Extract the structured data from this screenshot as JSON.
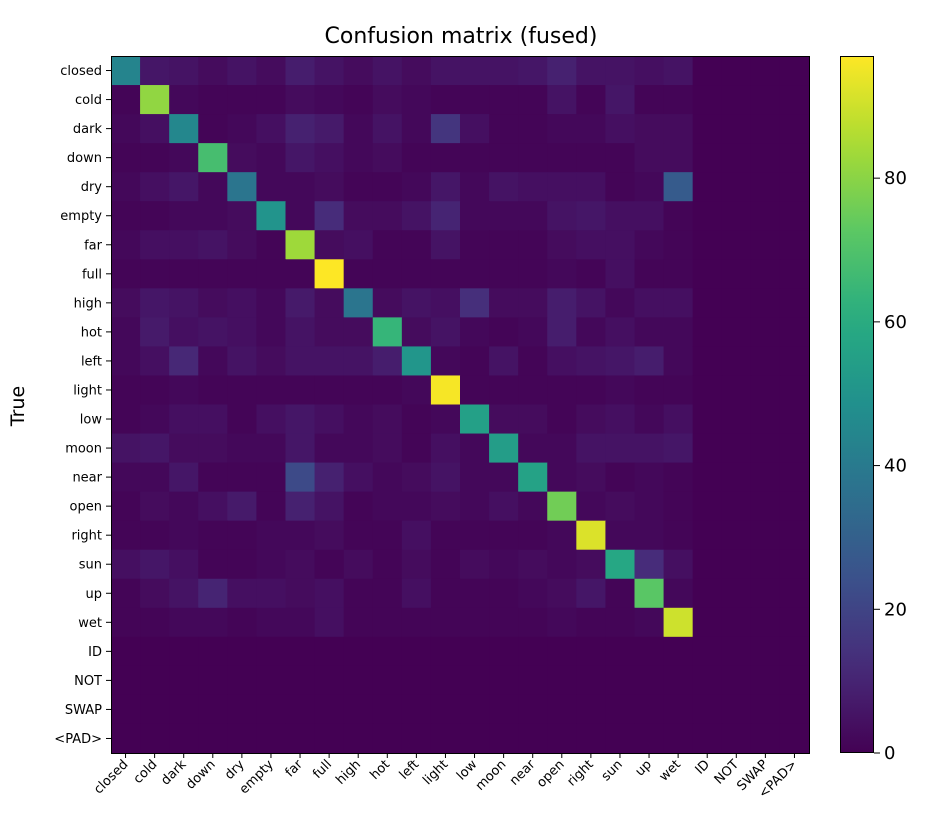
{
  "chart_data": {
    "type": "heatmap",
    "title": "Confusion matrix (fused)",
    "ylabel": "True",
    "xlabel": "",
    "labels": [
      "closed",
      "cold",
      "dark",
      "down",
      "dry",
      "empty",
      "far",
      "full",
      "high",
      "hot",
      "left",
      "light",
      "low",
      "moon",
      "near",
      "open",
      "right",
      "sun",
      "up",
      "wet",
      "ID",
      "NOT",
      "SWAP",
      "<PAD>"
    ],
    "colormap": "viridis",
    "vmin": 0,
    "vmax": 97,
    "colorbar_ticks": [
      0,
      20,
      40,
      60,
      80
    ],
    "matrix": [
      [
        44,
        6,
        5,
        3,
        5,
        3,
        8,
        5,
        3,
        5,
        3,
        5,
        5,
        5,
        6,
        9,
        5,
        5,
        4,
        5,
        0,
        0,
        0,
        0
      ],
      [
        1,
        81,
        2,
        1,
        1,
        1,
        3,
        2,
        1,
        3,
        2,
        1,
        1,
        1,
        1,
        5,
        1,
        6,
        1,
        1,
        0,
        0,
        0,
        0
      ],
      [
        2,
        4,
        45,
        1,
        2,
        4,
        9,
        7,
        2,
        5,
        2,
        15,
        4,
        1,
        1,
        2,
        2,
        4,
        3,
        3,
        0,
        0,
        0,
        0
      ],
      [
        1,
        1,
        2,
        68,
        3,
        2,
        6,
        4,
        2,
        3,
        1,
        1,
        1,
        1,
        1,
        1,
        1,
        1,
        3,
        3,
        0,
        0,
        0,
        0
      ],
      [
        2,
        4,
        6,
        2,
        38,
        2,
        2,
        3,
        1,
        1,
        2,
        6,
        2,
        5,
        4,
        4,
        4,
        1,
        2,
        28,
        0,
        0,
        0,
        0
      ],
      [
        1,
        1,
        2,
        2,
        3,
        50,
        2,
        12,
        3,
        3,
        5,
        10,
        2,
        2,
        2,
        5,
        6,
        4,
        4,
        1,
        0,
        0,
        0,
        0
      ],
      [
        2,
        4,
        4,
        5,
        3,
        1,
        83,
        3,
        4,
        1,
        1,
        5,
        1,
        1,
        1,
        3,
        4,
        4,
        2,
        1,
        0,
        0,
        0,
        0
      ],
      [
        1,
        1,
        1,
        1,
        1,
        1,
        1,
        97,
        1,
        1,
        1,
        1,
        1,
        1,
        1,
        2,
        1,
        4,
        1,
        1,
        0,
        0,
        0,
        0
      ],
      [
        3,
        6,
        5,
        3,
        4,
        2,
        7,
        3,
        38,
        3,
        5,
        4,
        13,
        3,
        3,
        8,
        5,
        2,
        4,
        4,
        0,
        0,
        0,
        0
      ],
      [
        2,
        7,
        4,
        5,
        4,
        2,
        5,
        3,
        3,
        64,
        3,
        5,
        2,
        1,
        2,
        8,
        2,
        4,
        2,
        2,
        0,
        0,
        0,
        0
      ],
      [
        2,
        4,
        11,
        2,
        5,
        3,
        5,
        5,
        5,
        8,
        51,
        2,
        1,
        5,
        1,
        4,
        5,
        6,
        8,
        2,
        0,
        0,
        0,
        0
      ],
      [
        1,
        1,
        2,
        1,
        1,
        1,
        1,
        1,
        1,
        1,
        2,
        96,
        1,
        1,
        1,
        1,
        1,
        2,
        1,
        1,
        0,
        0,
        0,
        0
      ],
      [
        1,
        2,
        4,
        4,
        1,
        4,
        6,
        4,
        2,
        3,
        1,
        2,
        55,
        3,
        3,
        1,
        3,
        4,
        2,
        4,
        0,
        0,
        0,
        0
      ],
      [
        5,
        6,
        3,
        3,
        2,
        2,
        6,
        2,
        2,
        3,
        1,
        4,
        2,
        54,
        2,
        2,
        5,
        5,
        5,
        6,
        0,
        0,
        0,
        0
      ],
      [
        2,
        2,
        6,
        1,
        1,
        1,
        22,
        9,
        4,
        2,
        3,
        5,
        2,
        2,
        56,
        2,
        3,
        1,
        2,
        1,
        0,
        0,
        0,
        0
      ],
      [
        1,
        3,
        2,
        4,
        7,
        1,
        9,
        5,
        1,
        2,
        2,
        3,
        2,
        4,
        2,
        76,
        2,
        3,
        2,
        1,
        0,
        0,
        0,
        0
      ],
      [
        1,
        1,
        2,
        1,
        1,
        2,
        2,
        3,
        1,
        1,
        4,
        1,
        1,
        1,
        1,
        2,
        92,
        2,
        2,
        1,
        0,
        0,
        0,
        0
      ],
      [
        4,
        6,
        4,
        1,
        1,
        2,
        3,
        1,
        3,
        1,
        3,
        1,
        3,
        2,
        3,
        2,
        3,
        58,
        12,
        4,
        0,
        0,
        0,
        0
      ],
      [
        1,
        3,
        5,
        10,
        4,
        4,
        3,
        4,
        1,
        1,
        4,
        1,
        1,
        1,
        2,
        3,
        6,
        1,
        72,
        2,
        0,
        0,
        0,
        0
      ],
      [
        1,
        1,
        2,
        2,
        1,
        2,
        2,
        4,
        1,
        1,
        1,
        1,
        1,
        1,
        1,
        2,
        1,
        1,
        2,
        90,
        0,
        0,
        0,
        0
      ],
      [
        0,
        0,
        0,
        0,
        0,
        0,
        0,
        0,
        0,
        0,
        0,
        0,
        0,
        0,
        0,
        0,
        0,
        0,
        0,
        0,
        0,
        0,
        0,
        0
      ],
      [
        0,
        0,
        0,
        0,
        0,
        0,
        0,
        0,
        0,
        0,
        0,
        0,
        0,
        0,
        0,
        0,
        0,
        0,
        0,
        0,
        0,
        0,
        0,
        0
      ],
      [
        0,
        0,
        0,
        0,
        0,
        0,
        0,
        0,
        0,
        0,
        0,
        0,
        0,
        0,
        0,
        0,
        0,
        0,
        0,
        0,
        0,
        0,
        0,
        0
      ],
      [
        0,
        0,
        0,
        0,
        0,
        0,
        0,
        0,
        0,
        0,
        0,
        0,
        0,
        0,
        0,
        0,
        0,
        0,
        0,
        0,
        0,
        0,
        0,
        0
      ]
    ]
  }
}
